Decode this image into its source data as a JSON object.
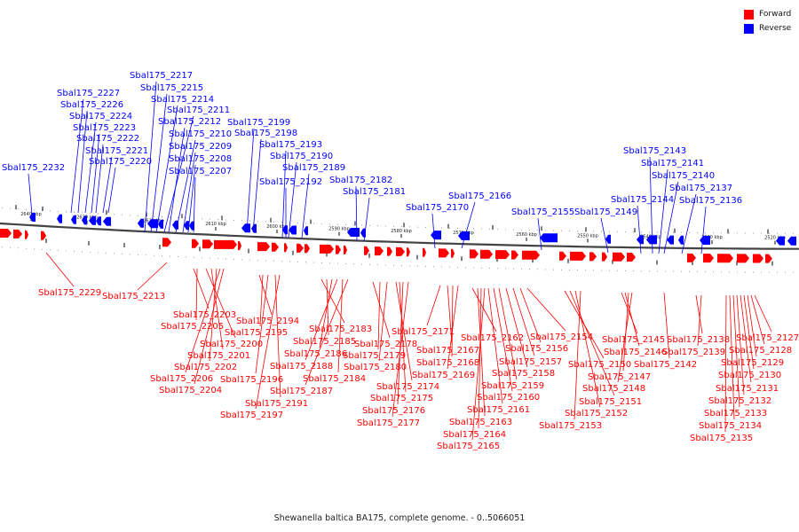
{
  "legend": {
    "forward_label": "Forward",
    "reverse_label": "Reverse",
    "forward_color": "#ff0000",
    "reverse_color": "#0000ff"
  },
  "caption": "Shewanella baltica BA175, complete genome. - 0..5066051",
  "scale_labels": [
    "2640 kbp",
    "2630 kbp",
    "2620 kbp",
    "2610 kbp",
    "2600 kbp",
    "2590 kbp",
    "2580 kbp",
    "2570 kbp",
    "2560 kbp",
    "2550 kbp",
    "2540 kbp",
    "2530 kbp",
    "2520 kbp"
  ],
  "reverse_genes": [
    "Sbal175_2232",
    "Sbal175_2227",
    "Sbal175_2226",
    "Sbal175_2224",
    "Sbal175_2223",
    "Sbal175_2222",
    "Sbal175_2221",
    "Sbal175_2220",
    "Sbal175_2217",
    "Sbal175_2215",
    "Sbal175_2214",
    "Sbal175_2211",
    "Sbal175_2212",
    "Sbal175_2210",
    "Sbal175_2209",
    "Sbal175_2208",
    "Sbal175_2207",
    "Sbal175_2199",
    "Sbal175_2198",
    "Sbal175_2193",
    "Sbal175_2190",
    "Sbal175_2189",
    "Sbal175_2192",
    "Sbal175_2182",
    "Sbal175_2181",
    "Sbal175_2170",
    "Sbal175_2166",
    "Sbal175_2155",
    "Sbal175_2149",
    "Sbal175_2144",
    "Sbal175_2143",
    "Sbal175_2141",
    "Sbal175_2140",
    "Sbal175_2137",
    "Sbal175_2136"
  ],
  "forward_genes": [
    "Sbal175_2229",
    "Sbal175_2213",
    "Sbal175_2203",
    "Sbal175_2205",
    "Sbal175_2200",
    "Sbal175_2201",
    "Sbal175_2202",
    "Sbal175_2206",
    "Sbal175_2204",
    "Sbal175_2194",
    "Sbal175_2195",
    "Sbal175_2196",
    "Sbal175_2191",
    "Sbal175_2197",
    "Sbal175_2183",
    "Sbal175_2185",
    "Sbal175_2186",
    "Sbal175_2188",
    "Sbal175_2184",
    "Sbal175_2187",
    "Sbal175_2178",
    "Sbal175_2179",
    "Sbal175_2180",
    "Sbal175_2174",
    "Sbal175_2175",
    "Sbal175_2176",
    "Sbal175_2177",
    "Sbal175_2171",
    "Sbal175_2167",
    "Sbal175_2168",
    "Sbal175_2169",
    "Sbal175_2162",
    "Sbal175_2163",
    "Sbal175_2164",
    "Sbal175_2165",
    "Sbal175_2161",
    "Sbal175_2160",
    "Sbal175_2159",
    "Sbal175_2158",
    "Sbal175_2157",
    "Sbal175_2156",
    "Sbal175_2154",
    "Sbal175_2150",
    "Sbal175_2151",
    "Sbal175_2152",
    "Sbal175_2153",
    "Sbal175_2145",
    "Sbal175_2146",
    "Sbal175_2147",
    "Sbal175_2148",
    "Sbal175_2142",
    "Sbal175_2138",
    "Sbal175_2139",
    "Sbal175_2127",
    "Sbal175_2128",
    "Sbal175_2129",
    "Sbal175_2130",
    "Sbal175_2131",
    "Sbal175_2132",
    "Sbal175_2133",
    "Sbal175_2134",
    "Sbal175_2135"
  ]
}
